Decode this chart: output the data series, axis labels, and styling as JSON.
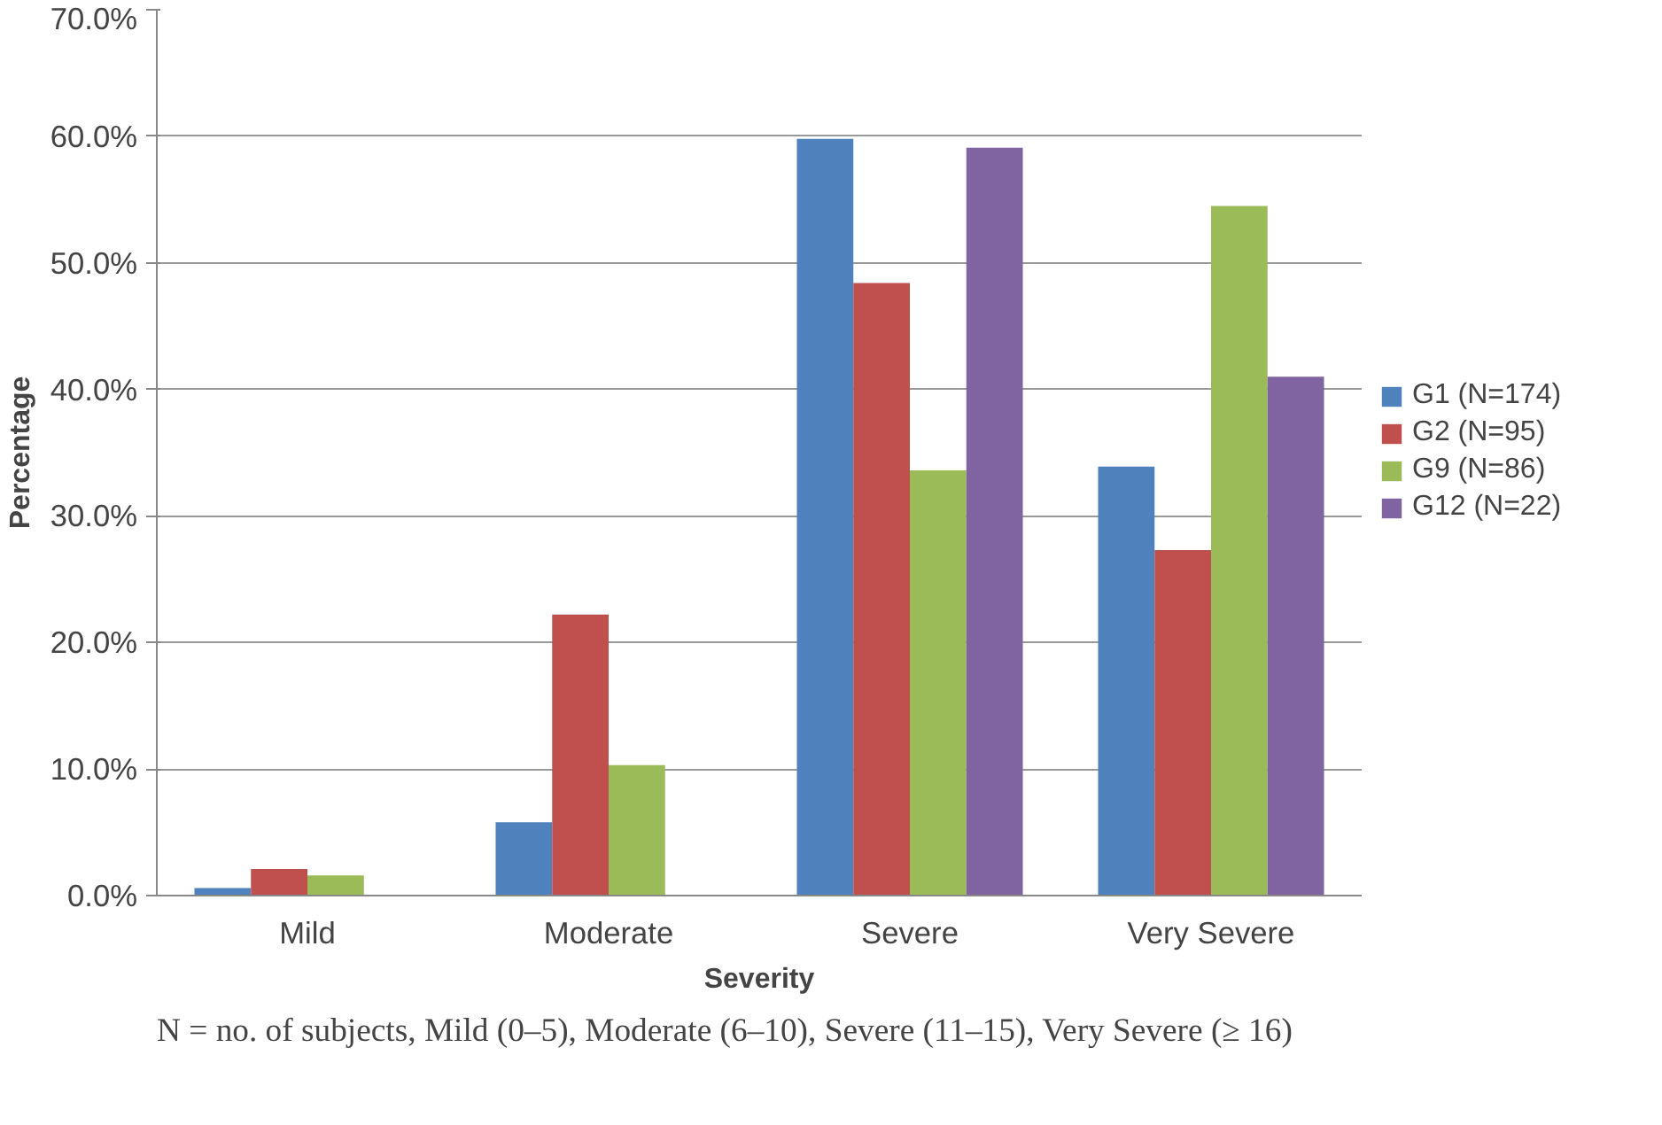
{
  "chart_data": {
    "type": "bar",
    "xlabel": "Severity",
    "ylabel": "Percentage",
    "categories": [
      "Mild",
      "Moderate",
      "Severe",
      "Very Severe"
    ],
    "series": [
      {
        "name": "G1 (N=174)",
        "color": "#4f81bd",
        "values": [
          0.6,
          5.8,
          59.8,
          33.9
        ]
      },
      {
        "name": "G2 (N=95)",
        "color": "#c0504d",
        "values": [
          2.1,
          22.2,
          48.4,
          27.3
        ]
      },
      {
        "name": "G9 (N=86)",
        "color": "#9bbb59",
        "values": [
          1.6,
          10.3,
          33.6,
          54.5
        ]
      },
      {
        "name": "G12 (N=22)",
        "color": "#8064a2",
        "values": [
          0,
          0,
          59.1,
          41.0
        ]
      }
    ],
    "ylim": [
      0,
      70
    ],
    "yticks": [
      {
        "value": 0,
        "label": "0.0%"
      },
      {
        "value": 10,
        "label": "10.0%"
      },
      {
        "value": 20,
        "label": "20.0%"
      },
      {
        "value": 30,
        "label": "30.0%"
      },
      {
        "value": 40,
        "label": "40.0%"
      },
      {
        "value": 50,
        "label": "50.0%"
      },
      {
        "value": 60,
        "label": "60.0%"
      },
      {
        "value": 70,
        "label": "70.0%"
      }
    ],
    "grid": "y",
    "legend": "right",
    "annotations": [
      "N = no. of subjects, Mild (0–5), Moderate (6–10), Severe (11–15), Very Severe (≥ 16)"
    ]
  }
}
